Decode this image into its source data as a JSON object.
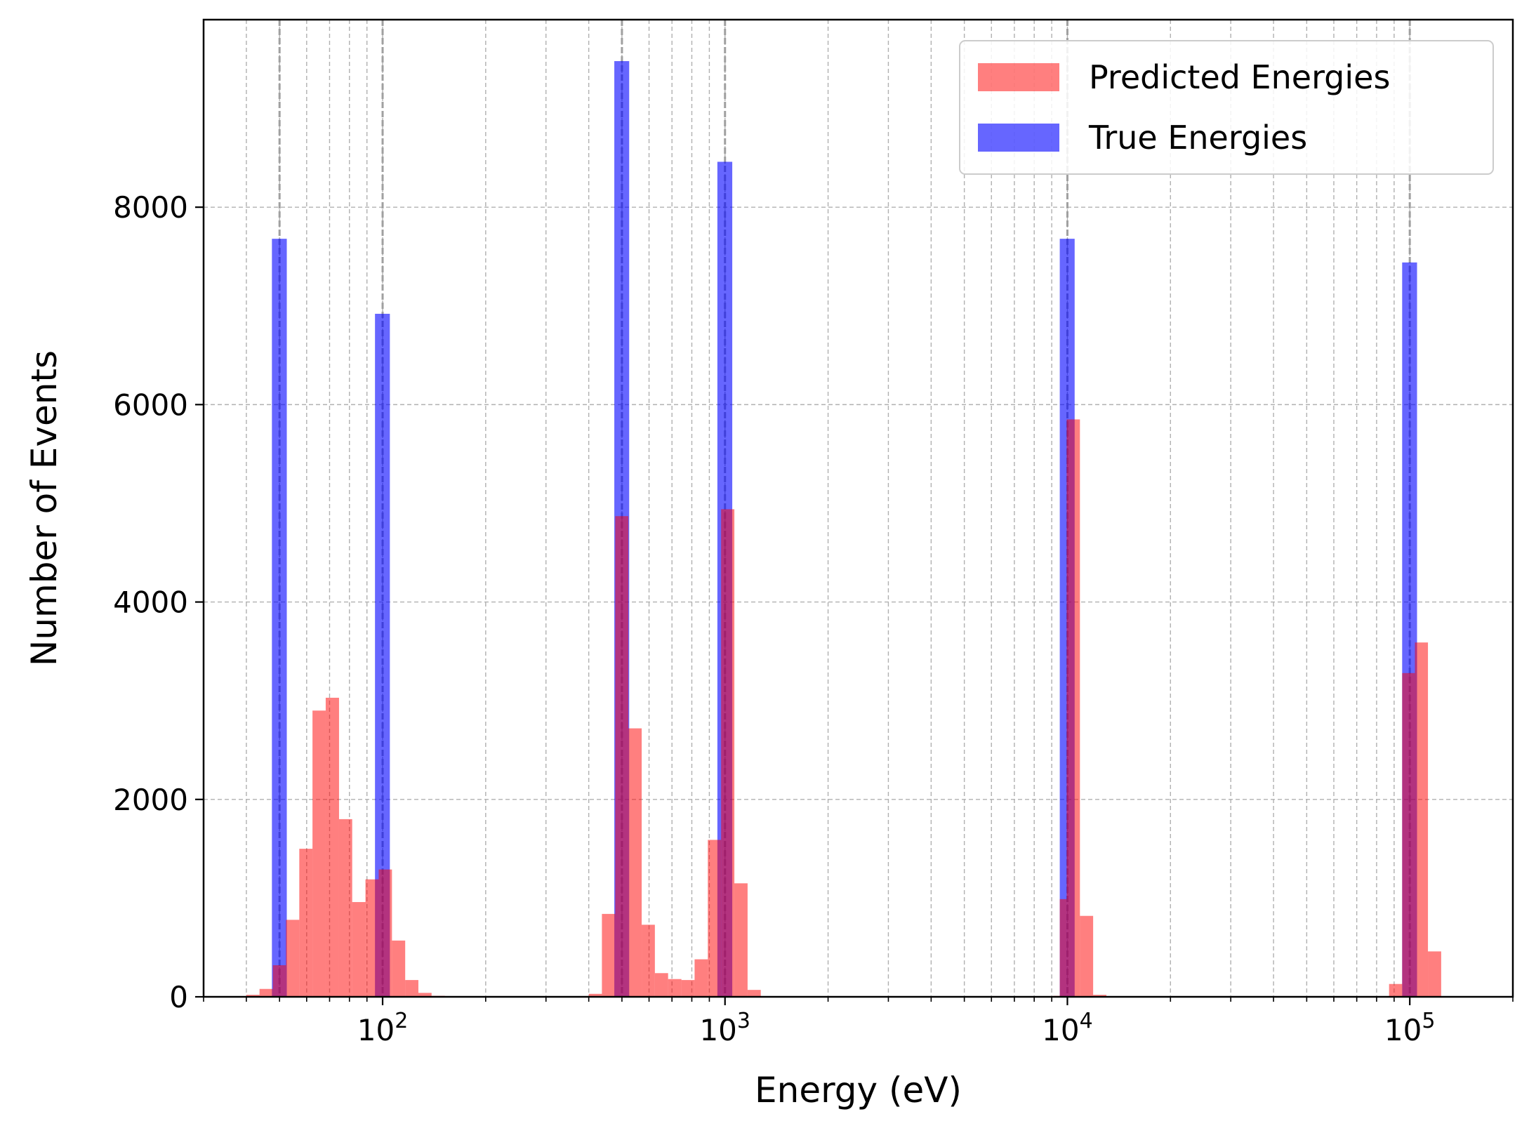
{
  "chart_data": {
    "type": "bar",
    "xlabel": "Energy (eV)",
    "ylabel": "Number of Events",
    "x_scale": "log",
    "xlim": [
      30,
      200000
    ],
    "ylim": [
      0,
      9900
    ],
    "grid": true,
    "legend_position": "top-right",
    "x_ticks": [
      {
        "value": 100,
        "base": "10",
        "exp": "2"
      },
      {
        "value": 1000,
        "base": "10",
        "exp": "3"
      },
      {
        "value": 10000,
        "base": "10",
        "exp": "4"
      },
      {
        "value": 100000,
        "base": "10",
        "exp": "5"
      }
    ],
    "y_ticks": [
      {
        "value": 0,
        "label": "0"
      },
      {
        "value": 2000,
        "label": "2000"
      },
      {
        "value": 4000,
        "label": "4000"
      },
      {
        "value": 6000,
        "label": "6000"
      },
      {
        "value": 8000,
        "label": "8000"
      }
    ],
    "reference_lines_x": [
      50,
      100,
      500,
      1000,
      10000,
      100000
    ],
    "series": [
      {
        "name": "True Energies",
        "color": "#0000ff",
        "opacity": 0.6,
        "bins": [
          {
            "lo": 47.5,
            "hi": 52.5,
            "value": 7680
          },
          {
            "lo": 95,
            "hi": 105,
            "value": 6920
          },
          {
            "lo": 475,
            "hi": 525,
            "value": 9480
          },
          {
            "lo": 950,
            "hi": 1050,
            "value": 8460
          },
          {
            "lo": 9500,
            "hi": 10500,
            "value": 7680
          },
          {
            "lo": 95000,
            "hi": 105000,
            "value": 7440
          }
        ]
      },
      {
        "name": "Predicted Energies",
        "color": "#ff0000",
        "opacity": 0.5,
        "bins": [
          {
            "lo": 40.0,
            "hi": 43.7,
            "value": 20
          },
          {
            "lo": 43.7,
            "hi": 47.8,
            "value": 80
          },
          {
            "lo": 47.8,
            "hi": 52.2,
            "value": 320
          },
          {
            "lo": 52.2,
            "hi": 57.1,
            "value": 780
          },
          {
            "lo": 57.1,
            "hi": 62.4,
            "value": 1500
          },
          {
            "lo": 62.4,
            "hi": 68.2,
            "value": 2900
          },
          {
            "lo": 68.2,
            "hi": 74.6,
            "value": 3030
          },
          {
            "lo": 74.6,
            "hi": 81.5,
            "value": 1800
          },
          {
            "lo": 81.5,
            "hi": 89.1,
            "value": 960
          },
          {
            "lo": 89.1,
            "hi": 97.4,
            "value": 1190
          },
          {
            "lo": 97.4,
            "hi": 106.5,
            "value": 1290
          },
          {
            "lo": 106.5,
            "hi": 116.4,
            "value": 570
          },
          {
            "lo": 116.4,
            "hi": 127.2,
            "value": 170
          },
          {
            "lo": 127.2,
            "hi": 139.0,
            "value": 40
          },
          {
            "lo": 139.0,
            "hi": 152.0,
            "value": 10
          },
          {
            "lo": 400,
            "hi": 437,
            "value": 30
          },
          {
            "lo": 437,
            "hi": 478,
            "value": 840
          },
          {
            "lo": 478,
            "hi": 522,
            "value": 4870
          },
          {
            "lo": 522,
            "hi": 571,
            "value": 2720
          },
          {
            "lo": 571,
            "hi": 624,
            "value": 730
          },
          {
            "lo": 624,
            "hi": 682,
            "value": 240
          },
          {
            "lo": 682,
            "hi": 746,
            "value": 180
          },
          {
            "lo": 746,
            "hi": 815,
            "value": 170
          },
          {
            "lo": 815,
            "hi": 891,
            "value": 380
          },
          {
            "lo": 891,
            "hi": 974,
            "value": 1590
          },
          {
            "lo": 974,
            "hi": 1065,
            "value": 4940
          },
          {
            "lo": 1065,
            "hi": 1164,
            "value": 1150
          },
          {
            "lo": 1164,
            "hi": 1272,
            "value": 70
          },
          {
            "lo": 9100,
            "hi": 9500,
            "value": 10
          },
          {
            "lo": 9500,
            "hi": 9950,
            "value": 990
          },
          {
            "lo": 9950,
            "hi": 10880,
            "value": 5850
          },
          {
            "lo": 10880,
            "hi": 11890,
            "value": 820
          },
          {
            "lo": 11890,
            "hi": 13000,
            "value": 20
          },
          {
            "lo": 87000,
            "hi": 95000,
            "value": 130
          },
          {
            "lo": 95000,
            "hi": 103500,
            "value": 3280
          },
          {
            "lo": 103500,
            "hi": 113000,
            "value": 3590
          },
          {
            "lo": 113000,
            "hi": 123500,
            "value": 460
          }
        ]
      }
    ],
    "legend": [
      {
        "name": "Predicted Energies",
        "color": "#ff0000",
        "opacity": 0.5
      },
      {
        "name": "True Energies",
        "color": "#0000ff",
        "opacity": 0.6
      }
    ]
  }
}
